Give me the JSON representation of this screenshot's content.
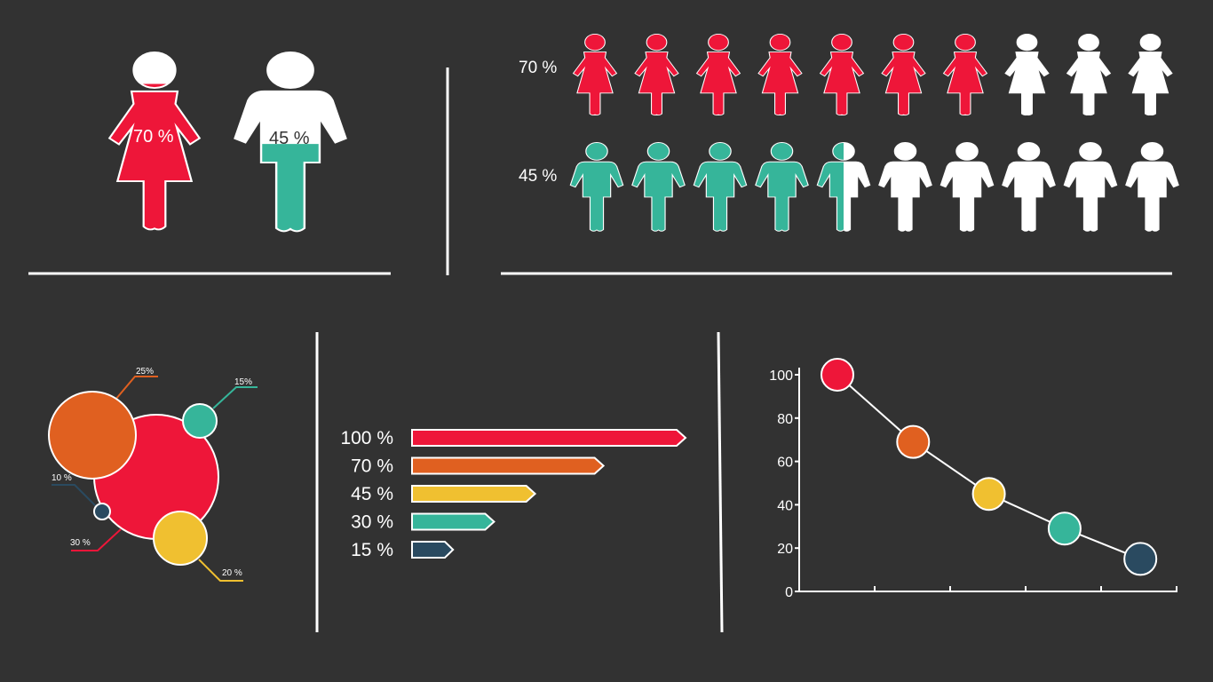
{
  "colors": {
    "background": "#323232",
    "red": "#ee1639",
    "orange": "#e06020",
    "yellow": "#f0c030",
    "teal": "#36b59a",
    "navy": "#2a4a60",
    "white": "#ffffff"
  },
  "gender_split": {
    "female": {
      "label": "70 %",
      "value": 70,
      "icon": "female-icon"
    },
    "male": {
      "label": "45 %",
      "value": 45,
      "icon": "male-icon"
    }
  },
  "pictograph_rows": [
    {
      "label": "70 %",
      "value": 70,
      "icons": 10,
      "icon": "female-icon",
      "color": "#ee1639"
    },
    {
      "label": "45 %",
      "value": 45,
      "icons": 10,
      "icon": "male-icon",
      "color": "#36b59a"
    }
  ],
  "chart_data": [
    {
      "type": "bubble",
      "bubbles": [
        {
          "label": "25%",
          "value": 25,
          "color": "#e06020"
        },
        {
          "label": "15%",
          "value": 15,
          "color": "#36b59a"
        },
        {
          "label": "10 %",
          "value": 10,
          "color": "#2a4a60"
        },
        {
          "label": "30 %",
          "value": 30,
          "color": "#ee1639"
        },
        {
          "label": "20 %",
          "value": 20,
          "color": "#f0c030"
        }
      ]
    },
    {
      "type": "bar",
      "orientation": "horizontal",
      "categories": [
        "100 %",
        "70 %",
        "45 %",
        "30 %",
        "15 %"
      ],
      "values": [
        100,
        70,
        45,
        30,
        15
      ],
      "colors": [
        "#ee1639",
        "#e06020",
        "#f0c030",
        "#36b59a",
        "#2a4a60"
      ]
    },
    {
      "type": "line",
      "x": [
        1,
        2,
        3,
        4,
        5
      ],
      "values": [
        100,
        69,
        45,
        29,
        15
      ],
      "colors": [
        "#ee1639",
        "#e06020",
        "#f0c030",
        "#36b59a",
        "#2a4a60"
      ],
      "ylim": [
        0,
        100
      ],
      "yticks": [
        "0",
        "20",
        "40",
        "60",
        "80",
        "100"
      ],
      "xlim": [
        0.5,
        5.5
      ]
    }
  ]
}
